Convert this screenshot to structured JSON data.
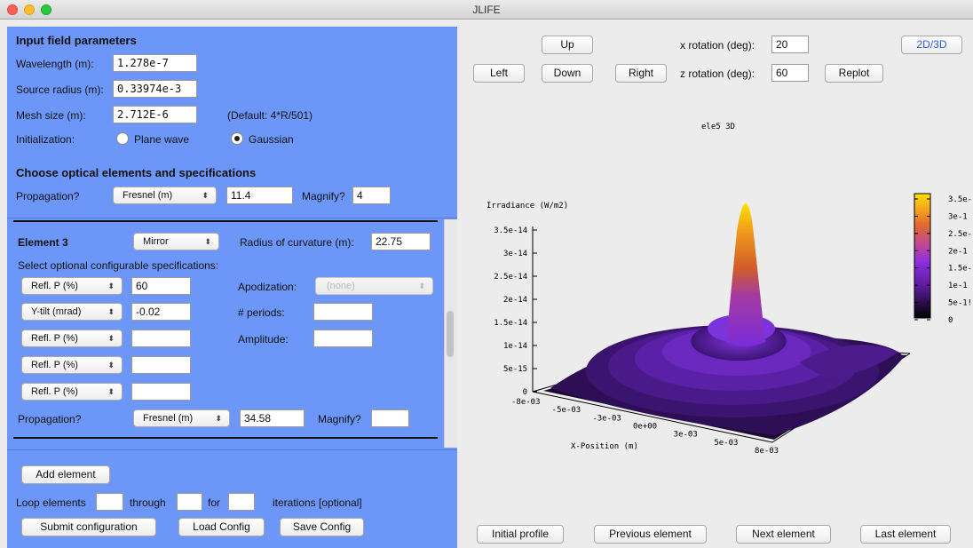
{
  "window": {
    "title": "JLIFE"
  },
  "input_section": {
    "heading": "Input field parameters",
    "wavelength_label": "Wavelength (m):",
    "wavelength_value": "1.278e-7",
    "source_radius_label": "Source radius (m):",
    "source_radius_value": "0.33974e-3",
    "mesh_size_label": "Mesh size (m):",
    "mesh_size_value": "2.712E-6",
    "mesh_default": "(Default: 4*R/501)",
    "init_label": "Initialization:",
    "plane_wave": "Plane wave",
    "gaussian": "Gaussian",
    "selected_init": "Gaussian"
  },
  "optical_section": {
    "heading": "Choose optical elements and specifications",
    "propagation_label": "Propagation?",
    "propagation_select": "Fresnel (m)",
    "propagation_value": "11.4",
    "magnify_label": "Magnify?",
    "magnify_value": "4"
  },
  "element": {
    "title": "Element 3",
    "type_select": "Mirror",
    "radius_label": "Radius of curvature (m):",
    "radius_value": "22.75",
    "optional_label": "Select optional configurable specifications:",
    "specs": [
      {
        "select": "Refl. P (%)",
        "value": "60"
      },
      {
        "select": "Y-tilt (mrad)",
        "value": "-0.02"
      },
      {
        "select": "Refl. P (%)",
        "value": ""
      },
      {
        "select": "Refl. P (%)",
        "value": ""
      },
      {
        "select": "Refl. P (%)",
        "value": ""
      }
    ],
    "apodization_label": "Apodization:",
    "apodization_value": "(none)",
    "periods_label": "# periods:",
    "periods_value": "",
    "amplitude_label": "Amplitude:",
    "amplitude_value": "",
    "propagation_label": "Propagation?",
    "propagation_select": "Fresnel (m)",
    "propagation_value": "34.58",
    "magnify_label": "Magnify?",
    "magnify_value": ""
  },
  "bottom": {
    "add_element": "Add element",
    "loop_label": "Loop elements",
    "through_label": "through",
    "for_label": "for",
    "iterations_label": "iterations [optional]",
    "loop_from": "",
    "loop_to": "",
    "loop_iter": "",
    "submit": "Submit configuration",
    "load": "Load Config",
    "save": "Save Config"
  },
  "view_controls": {
    "up": "Up",
    "left": "Left",
    "down": "Down",
    "right": "Right",
    "x_rot_label": "x rotation (deg):",
    "x_rot_value": "20",
    "z_rot_label": "z rotation (deg):",
    "z_rot_value": "60",
    "replot": "Replot",
    "toggle_2d3d": "2D/3D"
  },
  "plot": {
    "title": "ele5 3D",
    "z_label": "Irradiance (W/m2)",
    "x_label": "X-Position (m)",
    "z_ticks": [
      "3.5e-14",
      "3e-14",
      "2.5e-14",
      "2e-14",
      "1.5e-14",
      "1e-14",
      "5e-15",
      "0"
    ],
    "x_ticks": [
      "-8e-03",
      "-5e-03",
      "-3e-03",
      "0e+00",
      "3e-03",
      "5e-03",
      "8e-03"
    ],
    "colorbar_ticks": [
      "3.5e-",
      "3e-1",
      "2.5e-",
      "2e-1",
      "1.5e-",
      "1e-1",
      "5e-1!",
      "0"
    ],
    "colors": {
      "low": "#000000",
      "mid": "#7b2bd9",
      "high": "#ffe000",
      "orange": "#e07020"
    }
  },
  "nav": {
    "initial": "Initial profile",
    "previous": "Previous element",
    "next": "Next element",
    "last": "Last element"
  }
}
